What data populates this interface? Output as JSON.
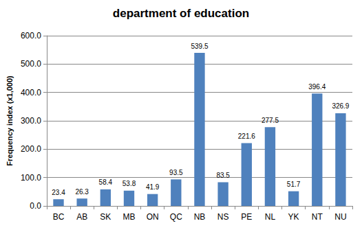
{
  "chart_data": {
    "type": "bar",
    "title": "department of education",
    "y_label": "Frequency index (x1,000)",
    "categories": [
      "BC",
      "AB",
      "SK",
      "MB",
      "ON",
      "QC",
      "NB",
      "NS",
      "PE",
      "NL",
      "YK",
      "NT",
      "NU"
    ],
    "values": [
      23.4,
      26.3,
      58.4,
      53.8,
      41.9,
      93.5,
      539.5,
      83.5,
      221.6,
      277.5,
      51.7,
      396.4,
      326.9
    ],
    "color": "#4f81bd",
    "ylim": [
      0,
      600
    ],
    "yticks": [
      {
        "value": 0,
        "label": "0.0"
      },
      {
        "value": 100,
        "label": "100.0"
      },
      {
        "value": 200,
        "label": "200.0"
      },
      {
        "value": 300,
        "label": "300.0"
      },
      {
        "value": 400,
        "label": "400.0"
      },
      {
        "value": 500,
        "label": "500.0"
      },
      {
        "value": 600,
        "label": "600.0"
      }
    ],
    "grid": true,
    "data_labels": true
  }
}
